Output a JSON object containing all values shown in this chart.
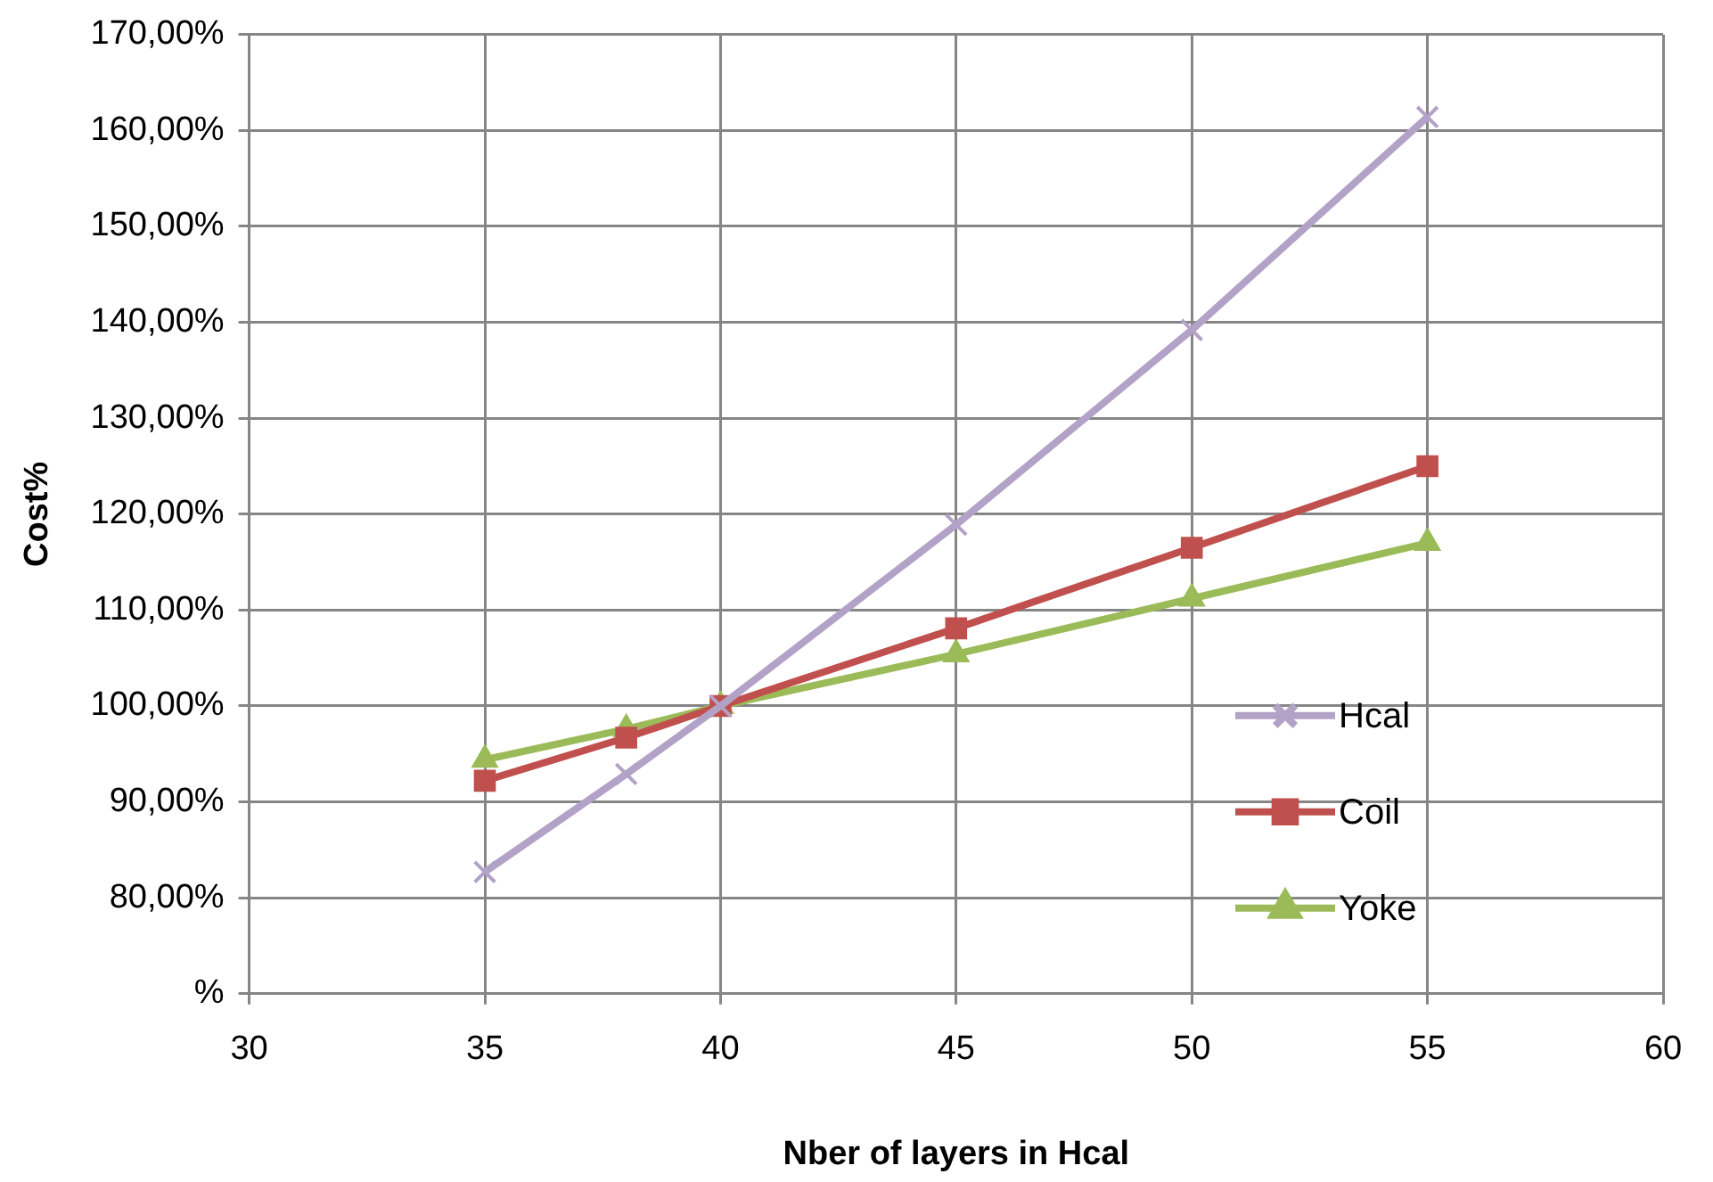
{
  "chart_data": {
    "type": "line",
    "xlabel": "Nber of layers in Hcal",
    "ylabel": "Cost%",
    "x": [
      35,
      38,
      40,
      45,
      50,
      55
    ],
    "series": [
      {
        "name": "Hcal",
        "color": "#b3a2c7",
        "marker": "cross",
        "values": [
          82.7,
          92.9,
          100,
          118.9,
          139.2,
          161.4
        ]
      },
      {
        "name": "Coil",
        "color": "#c0504d",
        "marker": "square",
        "values": [
          92.2,
          96.7,
          100,
          108.1,
          116.5,
          125
        ]
      },
      {
        "name": "Yoke",
        "color": "#9bbb59",
        "marker": "triangle",
        "values": [
          94.4,
          97.6,
          100,
          105.4,
          111.2,
          117
        ]
      }
    ],
    "xlim": [
      30,
      60
    ],
    "xticks": [
      30,
      35,
      40,
      45,
      50,
      55,
      60
    ],
    "ylim": [
      70,
      170
    ],
    "yticks": [
      {
        "value": 70,
        "label": "%"
      },
      {
        "value": 80,
        "label": "80,00%"
      },
      {
        "value": 90,
        "label": "90,00%"
      },
      {
        "value": 100,
        "label": "100,00%"
      },
      {
        "value": 110,
        "label": "110,00%"
      },
      {
        "value": 120,
        "label": "120,00%"
      },
      {
        "value": 130,
        "label": "130,00%"
      },
      {
        "value": 140,
        "label": "140,00%"
      },
      {
        "value": 150,
        "label": "150,00%"
      },
      {
        "value": 160,
        "label": "160,00%"
      },
      {
        "value": 170,
        "label": "170,00%"
      }
    ],
    "grid": true,
    "legend": "right",
    "line_style": "solid"
  }
}
